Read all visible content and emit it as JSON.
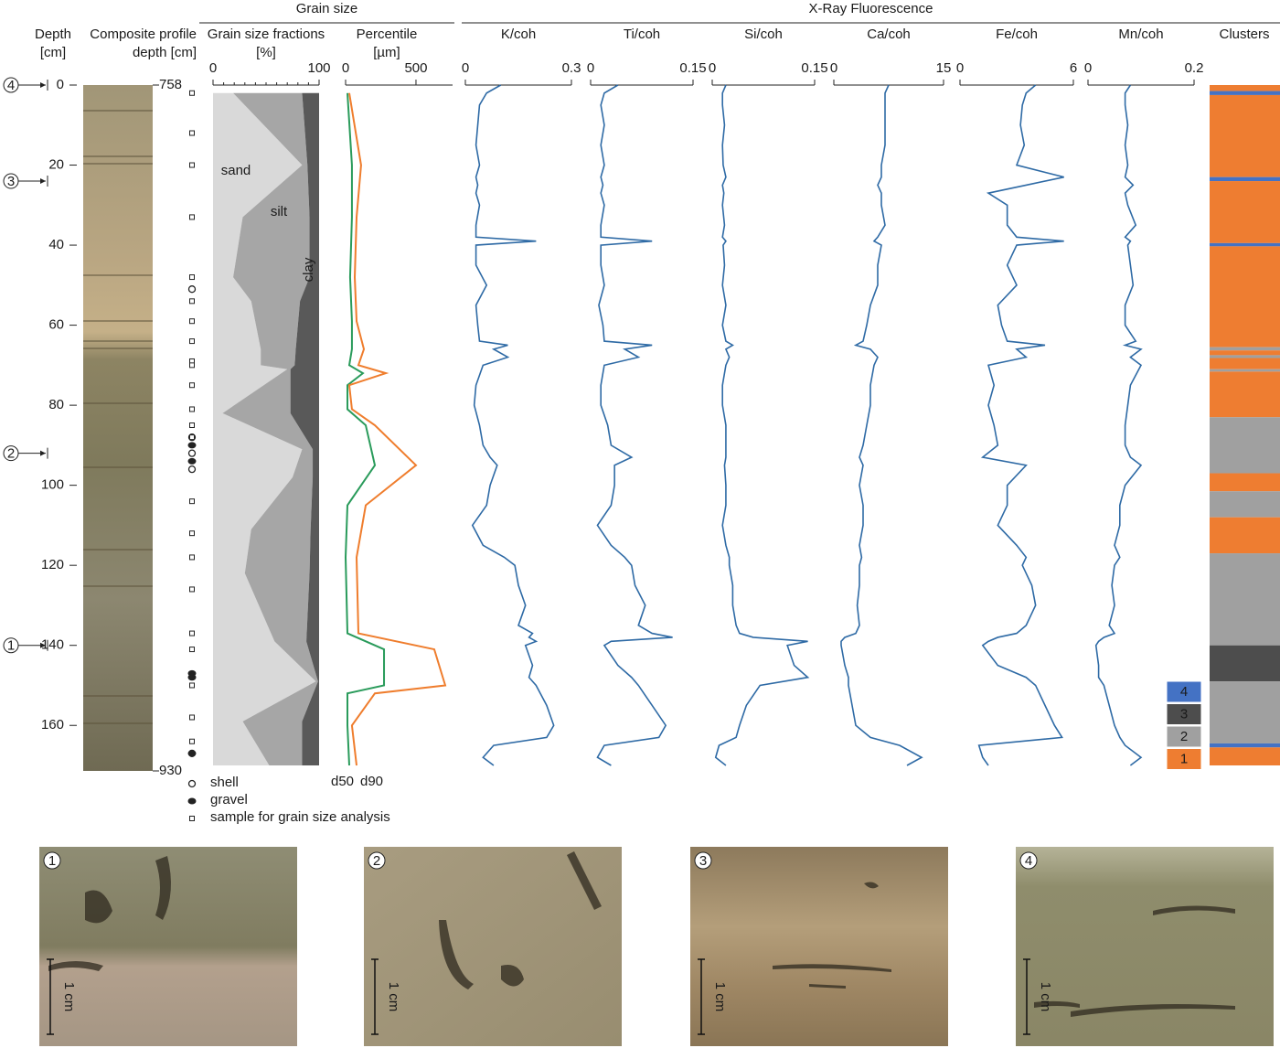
{
  "groups": [
    {
      "title": "Grain size"
    },
    {
      "title": "X-Ray Fluorescence"
    }
  ],
  "chart_data": [
    {
      "type": "axis",
      "title": [
        "Depth",
        "[cm]"
      ],
      "ylim": [
        0,
        170
      ],
      "yticks": [
        0,
        20,
        40,
        60,
        80,
        100,
        120,
        140,
        160
      ],
      "markers": [
        {
          "label": 4,
          "depth": 0
        },
        {
          "label": 3,
          "depth": 24
        },
        {
          "label": 2,
          "depth": 92
        },
        {
          "label": 1,
          "depth": 140
        }
      ]
    },
    {
      "type": "core",
      "title": [
        "Composite profile",
        "depth [cm]"
      ],
      "depth_range": [
        758,
        930
      ]
    },
    {
      "type": "symbols",
      "samples": [
        2,
        12,
        20,
        33,
        48,
        54,
        59,
        64,
        69,
        70,
        75,
        81,
        85,
        88,
        104,
        112,
        118,
        126,
        137,
        141,
        150,
        158,
        164
      ],
      "shell": [
        51,
        88,
        92,
        96,
        167
      ],
      "gravel": [
        90,
        94,
        147,
        148,
        167
      ],
      "legend": [
        "shell",
        "gravel",
        "sample for grain size analysis"
      ]
    },
    {
      "type": "area",
      "title": "Grain size fractions",
      "unit": "[%]",
      "xlim": [
        0,
        100
      ],
      "xticks": [
        0,
        100
      ],
      "xminorticks": [
        10,
        20,
        30,
        40,
        50,
        60,
        70,
        80,
        90
      ],
      "y": [
        2,
        20,
        33,
        48,
        54,
        66,
        70,
        71,
        82,
        91,
        98,
        111,
        122,
        139,
        149,
        159,
        170
      ],
      "series": [
        {
          "name": "sand",
          "color": "#d9d9d9",
          "values": [
            19,
            84,
            28,
            19,
            36,
            45,
            45,
            70,
            9,
            84,
            75,
            36,
            30,
            58,
            97,
            28,
            53
          ]
        },
        {
          "name": "silt",
          "color": "#a6a6a6",
          "values": [
            65,
            5,
            63,
            72,
            46,
            33,
            32,
            3,
            64,
            10,
            19,
            56,
            61,
            30,
            2,
            56,
            31
          ]
        },
        {
          "name": "clay",
          "color": "#595959",
          "values": [
            16,
            11,
            9,
            9,
            18,
            22,
            23,
            27,
            27,
            6,
            6,
            8,
            9,
            12,
            1,
            16,
            16
          ]
        }
      ]
    },
    {
      "type": "line",
      "title": "Percentile",
      "unit": "[µm]",
      "xlim": [
        0,
        760
      ],
      "xticks": [
        0,
        500
      ],
      "y": [
        2,
        20,
        33,
        48,
        59,
        66,
        70,
        72,
        75,
        81,
        85,
        95,
        105,
        118,
        137,
        141,
        150,
        152,
        160,
        170
      ],
      "series": [
        {
          "name": "d50",
          "color": "#2a9b5b",
          "values": [
            13,
            45,
            45,
            32,
            45,
            45,
            26,
            123,
            13,
            13,
            143,
            208,
            13,
            0,
            13,
            273,
            273,
            13,
            13,
            26
          ]
        },
        {
          "name": "d90",
          "color": "#ef7d2d",
          "values": [
            26,
            110,
            78,
            65,
            78,
            130,
            91,
            286,
            26,
            45,
            208,
            500,
            143,
            78,
            91,
            630,
            708,
            208,
            45,
            78
          ]
        }
      ]
    },
    {
      "type": "profile",
      "title": "K/coh",
      "xlim": [
        0,
        0.3
      ],
      "xticks": [
        0,
        0.3
      ],
      "color": "#2e6aa5",
      "y": [
        0,
        2,
        5,
        10,
        15,
        20,
        23,
        25,
        27,
        30,
        35,
        38,
        39,
        40,
        45,
        50,
        55,
        60,
        64,
        65,
        66,
        68,
        70,
        75,
        80,
        85,
        90,
        93,
        95,
        100,
        105,
        110,
        115,
        118,
        120,
        125,
        130,
        135,
        137,
        138,
        139,
        140,
        145,
        148,
        150,
        155,
        160,
        163,
        165,
        168,
        170
      ],
      "values": [
        0.1,
        0.06,
        0.04,
        0.035,
        0.03,
        0.04,
        0.03,
        0.035,
        0.03,
        0.04,
        0.03,
        0.03,
        0.2,
        0.03,
        0.03,
        0.06,
        0.03,
        0.035,
        0.04,
        0.12,
        0.08,
        0.12,
        0.05,
        0.03,
        0.025,
        0.04,
        0.05,
        0.07,
        0.09,
        0.07,
        0.06,
        0.02,
        0.05,
        0.11,
        0.14,
        0.15,
        0.17,
        0.15,
        0.19,
        0.18,
        0.2,
        0.17,
        0.19,
        0.18,
        0.2,
        0.23,
        0.25,
        0.23,
        0.08,
        0.05,
        0.08
      ]
    },
    {
      "type": "profile",
      "title": "Ti/coh",
      "xlim": [
        0,
        0.15
      ],
      "xticks": [
        0,
        0.15
      ],
      "color": "#2e6aa5",
      "y": [
        0,
        2,
        5,
        10,
        15,
        20,
        23,
        25,
        27,
        30,
        35,
        38,
        39,
        40,
        45,
        50,
        55,
        60,
        64,
        65,
        66,
        68,
        70,
        75,
        80,
        85,
        90,
        93,
        95,
        100,
        105,
        110,
        115,
        118,
        120,
        125,
        130,
        135,
        137,
        138,
        139,
        140,
        145,
        148,
        150,
        155,
        160,
        163,
        165,
        168,
        170
      ],
      "values": [
        0.04,
        0.02,
        0.015,
        0.02,
        0.015,
        0.02,
        0.015,
        0.018,
        0.015,
        0.02,
        0.015,
        0.015,
        0.09,
        0.015,
        0.015,
        0.02,
        0.012,
        0.018,
        0.02,
        0.09,
        0.05,
        0.07,
        0.02,
        0.015,
        0.015,
        0.025,
        0.03,
        0.06,
        0.035,
        0.035,
        0.03,
        0.01,
        0.03,
        0.05,
        0.06,
        0.065,
        0.08,
        0.07,
        0.09,
        0.12,
        0.03,
        0.02,
        0.04,
        0.06,
        0.07,
        0.09,
        0.11,
        0.1,
        0.02,
        0.01,
        0.03
      ]
    },
    {
      "type": "profile",
      "title": "Si/coh",
      "xlim": [
        0,
        0.15
      ],
      "xticks": [
        0,
        0.15
      ],
      "color": "#2e6aa5",
      "y": [
        0,
        2,
        5,
        10,
        15,
        20,
        23,
        25,
        27,
        30,
        35,
        38,
        39,
        40,
        45,
        50,
        55,
        60,
        64,
        65,
        66,
        68,
        70,
        75,
        80,
        85,
        90,
        93,
        95,
        100,
        105,
        110,
        115,
        118,
        120,
        125,
        130,
        135,
        137,
        138,
        139,
        140,
        145,
        148,
        150,
        155,
        160,
        163,
        165,
        168,
        170
      ],
      "values": [
        0.02,
        0.015,
        0.015,
        0.018,
        0.015,
        0.016,
        0.02,
        0.015,
        0.017,
        0.015,
        0.018,
        0.015,
        0.02,
        0.016,
        0.018,
        0.015,
        0.02,
        0.015,
        0.02,
        0.03,
        0.02,
        0.025,
        0.02,
        0.015,
        0.015,
        0.02,
        0.02,
        0.02,
        0.018,
        0.02,
        0.02,
        0.015,
        0.02,
        0.025,
        0.025,
        0.03,
        0.03,
        0.035,
        0.04,
        0.06,
        0.14,
        0.11,
        0.12,
        0.14,
        0.07,
        0.05,
        0.04,
        0.035,
        0.01,
        0.005,
        0.02
      ]
    },
    {
      "type": "profile",
      "title": "Ca/coh",
      "xlim": [
        0,
        15
      ],
      "xticks": [
        0,
        15
      ],
      "color": "#2e6aa5",
      "y": [
        0,
        2,
        5,
        10,
        15,
        20,
        23,
        25,
        27,
        30,
        35,
        38,
        39,
        40,
        45,
        50,
        55,
        60,
        64,
        65,
        66,
        68,
        70,
        75,
        80,
        85,
        90,
        93,
        95,
        100,
        105,
        110,
        115,
        118,
        120,
        125,
        130,
        135,
        137,
        138,
        139,
        140,
        145,
        148,
        150,
        155,
        160,
        163,
        165,
        168,
        170
      ],
      "values": [
        7.5,
        7,
        7,
        7,
        7,
        6.5,
        6.5,
        6,
        6.5,
        6.5,
        7,
        6,
        5.5,
        6.5,
        6,
        6,
        5,
        4.5,
        4,
        3,
        5,
        6,
        5.5,
        5,
        5,
        4.5,
        4,
        3.5,
        4,
        3.5,
        4,
        4,
        3.5,
        3.8,
        3.5,
        3.5,
        3.2,
        3.5,
        3,
        1.5,
        1,
        1,
        1.5,
        2,
        2,
        2.5,
        3,
        5,
        9,
        12,
        10
      ]
    },
    {
      "type": "profile",
      "title": "Fe/coh",
      "xlim": [
        0,
        6
      ],
      "xticks": [
        0,
        6
      ],
      "color": "#2e6aa5",
      "y": [
        0,
        2,
        5,
        10,
        15,
        20,
        23,
        25,
        27,
        30,
        35,
        38,
        39,
        40,
        45,
        50,
        55,
        60,
        64,
        65,
        66,
        68,
        70,
        75,
        80,
        85,
        90,
        93,
        95,
        100,
        105,
        110,
        115,
        118,
        120,
        125,
        130,
        135,
        137,
        138,
        139,
        140,
        145,
        148,
        150,
        155,
        160,
        163,
        165,
        168,
        170
      ],
      "values": [
        4,
        3.5,
        3.3,
        3.2,
        3.4,
        3,
        5.5,
        3.5,
        1.5,
        2.5,
        2.5,
        3,
        5.5,
        3,
        2.5,
        3,
        2,
        2.2,
        2.5,
        4.5,
        3,
        3.5,
        1.5,
        1.8,
        1.5,
        1.8,
        2,
        1.2,
        3.5,
        2.5,
        2.5,
        2,
        3,
        3.5,
        3.3,
        3.8,
        4,
        3.5,
        3,
        2,
        1.5,
        1.2,
        2,
        3.5,
        4,
        4.5,
        5,
        5.4,
        1,
        1.2,
        1.5
      ]
    },
    {
      "type": "profile",
      "title": "Mn/coh",
      "xlim": [
        0,
        0.2
      ],
      "xticks": [
        0,
        0.2
      ],
      "color": "#2e6aa5",
      "y": [
        0,
        2,
        5,
        10,
        15,
        20,
        23,
        25,
        27,
        30,
        35,
        38,
        39,
        40,
        45,
        50,
        55,
        60,
        64,
        65,
        66,
        68,
        70,
        75,
        80,
        85,
        90,
        93,
        95,
        100,
        105,
        110,
        115,
        118,
        120,
        125,
        130,
        135,
        137,
        138,
        139,
        140,
        145,
        148,
        150,
        155,
        160,
        163,
        165,
        168,
        170
      ],
      "values": [
        0.08,
        0.07,
        0.07,
        0.075,
        0.07,
        0.075,
        0.07,
        0.085,
        0.07,
        0.075,
        0.09,
        0.07,
        0.08,
        0.075,
        0.08,
        0.085,
        0.07,
        0.07,
        0.09,
        0.07,
        0.1,
        0.08,
        0.1,
        0.08,
        0.075,
        0.07,
        0.07,
        0.08,
        0.1,
        0.07,
        0.06,
        0.06,
        0.05,
        0.06,
        0.05,
        0.045,
        0.05,
        0.04,
        0.05,
        0.03,
        0.02,
        0.015,
        0.02,
        0.02,
        0.03,
        0.04,
        0.05,
        0.06,
        0.07,
        0.1,
        0.08
      ]
    },
    {
      "type": "clusters",
      "title": "Clusters",
      "legend": [
        {
          "cluster": 4,
          "color": "#4472c4"
        },
        {
          "cluster": 3,
          "color": "#4d4d4d"
        },
        {
          "cluster": 2,
          "color": "#a0a0a0"
        },
        {
          "cluster": 1,
          "color": "#ee7d31"
        }
      ],
      "segments": [
        {
          "from": 0,
          "to": 1.5,
          "cluster": 1
        },
        {
          "from": 1.5,
          "to": 2.5,
          "cluster": 4
        },
        {
          "from": 2.5,
          "to": 23,
          "cluster": 1
        },
        {
          "from": 23,
          "to": 24,
          "cluster": 4
        },
        {
          "from": 24,
          "to": 39.5,
          "cluster": 1
        },
        {
          "from": 39.5,
          "to": 40.3,
          "cluster": 4
        },
        {
          "from": 40.3,
          "to": 65.5,
          "cluster": 1
        },
        {
          "from": 65.5,
          "to": 66.3,
          "cluster": 2
        },
        {
          "from": 66.3,
          "to": 67.5,
          "cluster": 1
        },
        {
          "from": 67.5,
          "to": 68.2,
          "cluster": 2
        },
        {
          "from": 68.2,
          "to": 71,
          "cluster": 1
        },
        {
          "from": 71,
          "to": 71.6,
          "cluster": 2
        },
        {
          "from": 71.6,
          "to": 83,
          "cluster": 1
        },
        {
          "from": 83,
          "to": 97,
          "cluster": 2
        },
        {
          "from": 97,
          "to": 101.5,
          "cluster": 1
        },
        {
          "from": 101.5,
          "to": 108,
          "cluster": 2
        },
        {
          "from": 108,
          "to": 117,
          "cluster": 1
        },
        {
          "from": 117,
          "to": 140,
          "cluster": 2
        },
        {
          "from": 140,
          "to": 149,
          "cluster": 3
        },
        {
          "from": 149,
          "to": 164.5,
          "cluster": 2
        },
        {
          "from": 164.5,
          "to": 165.5,
          "cluster": 4
        },
        {
          "from": 165.5,
          "to": 170,
          "cluster": 1
        }
      ]
    }
  ],
  "photos": [
    {
      "number": 1,
      "scale": "1 cm"
    },
    {
      "number": 2,
      "scale": "1 cm"
    },
    {
      "number": 3,
      "scale": "1 cm"
    },
    {
      "number": 4,
      "scale": "1 cm"
    }
  ]
}
